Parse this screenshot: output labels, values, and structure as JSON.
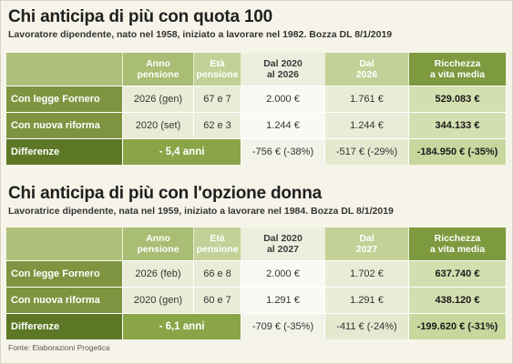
{
  "tables": [
    {
      "title": "Chi anticipa di più con quota 100",
      "subtitle": "Lavoratore dipendente, nato nel 1958, iniziato a lavorare nel 1982. Bozza DL 8/1/2019",
      "headers": {
        "anno": [
          "Anno",
          "pensione"
        ],
        "eta": [
          "Età",
          "pensione"
        ],
        "dal2020": [
          "Dal 2020",
          "al 2026"
        ],
        "dal": [
          "Dal",
          "2026"
        ],
        "ricchezza": [
          "Ricchezza",
          "a vita media"
        ]
      },
      "rows": [
        {
          "label": "Con legge Fornero",
          "anno": "2026 (gen)",
          "eta": "67 e 7",
          "dal2020": "2.000 €",
          "dal": "1.761 €",
          "ricchezza": "529.083 €"
        },
        {
          "label": "Con nuova riforma",
          "anno": "2020 (set)",
          "eta": "62 e 3",
          "dal2020": "1.244 €",
          "dal": "1.244 €",
          "ricchezza": "344.133 €"
        }
      ],
      "diff": {
        "label": "Differenze",
        "anni": "- 5,4 anni",
        "dal2020": "-756 € (-38%)",
        "dal": "-517 € (-29%)",
        "ricchezza": "-184.950 € (-35%)"
      }
    },
    {
      "title": "Chi anticipa di più con l'opzione donna",
      "subtitle": "Lavoratrice dipendente, nata nel 1959, iniziato a lavorare nel 1984. Bozza DL 8/1/2019",
      "headers": {
        "anno": [
          "Anno",
          "pensione"
        ],
        "eta": [
          "Età",
          "pensione"
        ],
        "dal2020": [
          "Dal 2020",
          "al 2027"
        ],
        "dal": [
          "Dal",
          "2027"
        ],
        "ricchezza": [
          "Ricchezza",
          "a vita media"
        ]
      },
      "rows": [
        {
          "label": "Con legge Fornero",
          "anno": "2026 (feb)",
          "eta": "66 e 8",
          "dal2020": "2.000 €",
          "dal": "1.702 €",
          "ricchezza": "637.740 €"
        },
        {
          "label": "Con nuova riforma",
          "anno": "2020 (gen)",
          "eta": "60 e 7",
          "dal2020": "1.291 €",
          "dal": "1.291 €",
          "ricchezza": "438.120 €"
        }
      ],
      "diff": {
        "label": "Differenze",
        "anni": "- 6,1 anni",
        "dal2020": "-709 € (-35%)",
        "dal": "-411 € (-24%)",
        "ricchezza": "-199.620 € (-31%)"
      }
    }
  ],
  "source": "Fonte: Elaborazioni Progetica"
}
